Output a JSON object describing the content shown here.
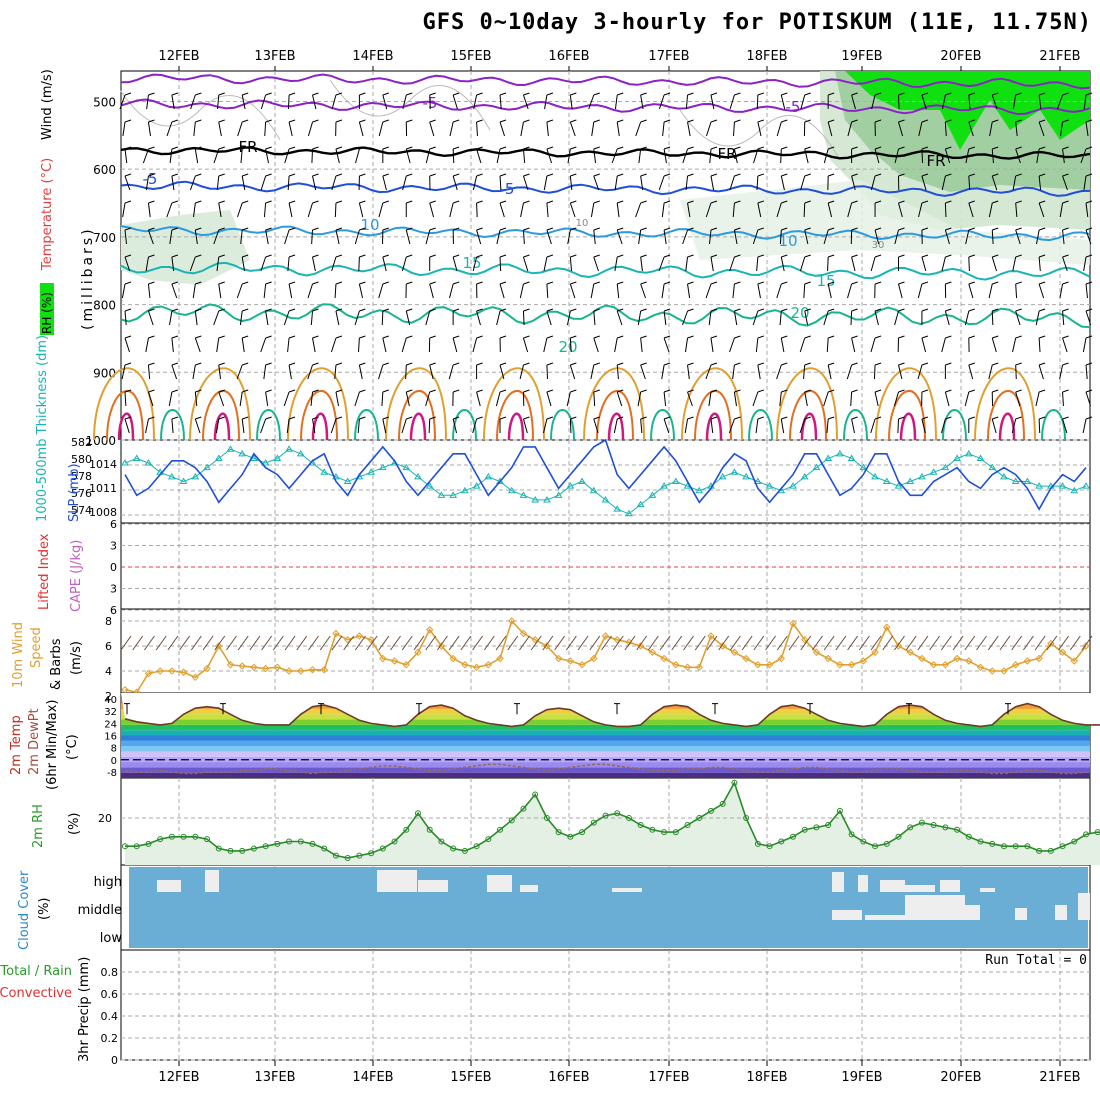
{
  "title": "GFS 0~10day 3-hourly for POTISKUM (11E, 11.75N)",
  "dates": [
    "12FEB",
    "13FEB",
    "14FEB",
    "15FEB",
    "16FEB",
    "17FEB",
    "18FEB",
    "19FEB",
    "20FEB",
    "21FEB"
  ],
  "colors": {
    "purple": "#8a22c8",
    "black": "#000000",
    "blue": "#1f4fd8",
    "lightblue": "#2a9be0",
    "teal": "#19b4b4",
    "green": "#18b490",
    "orange": "#e0a030",
    "darkorange": "#e07020",
    "magenta": "#d01880",
    "rhgreen": "#10e010",
    "cloud": "#6aaed6",
    "tempLine": "#6b3a2a"
  },
  "panels": {
    "upper": {
      "labels": {
        "rh": "RH (%)",
        "temp": "Temperature (°C)",
        "wind": "Wind (m/s)",
        "pressure": "(millibars)"
      },
      "yticks": [
        "500",
        "600",
        "700",
        "800",
        "900",
        "1000"
      ],
      "isotherm_labels": [
        "-5",
        "-5",
        "FR",
        "FR",
        "FR",
        "-5",
        "-5",
        "10",
        "10",
        "15",
        "15",
        "20",
        "20",
        "10",
        "30"
      ]
    },
    "thickness": {
      "label_left": "1000-500mb Thickness (dm)",
      "label_right": "SLP (mb)",
      "yticks_left": [
        "582",
        "580",
        "578",
        "576",
        "574"
      ],
      "yticks_right": [
        "1014",
        "1011",
        "1008"
      ]
    },
    "lifted": {
      "label1": "Lifted Index",
      "label2": "CAPE (J/kg)",
      "yticks": [
        "6",
        "3",
        "0",
        "3",
        "6"
      ]
    },
    "wind10": {
      "label1": "10m Wind",
      "label2": "Speed",
      "label3": "& Barbs",
      "unit": "(m/s)",
      "yticks": [
        "8",
        "6",
        "4",
        "2"
      ]
    },
    "temp2m": {
      "label1": "2m Temp",
      "label2": "2m DewPt",
      "label3": "(6hr Min/Max)",
      "unit": "(°C)",
      "yticks": [
        "40",
        "32",
        "24",
        "16",
        "8",
        "0",
        "-8"
      ]
    },
    "rh2m": {
      "label": "2m RH",
      "unit": "(%)",
      "yticks": [
        "20"
      ]
    },
    "cloud": {
      "label1": "Cloud Cover",
      "unit": "(%)",
      "levels": [
        "high",
        "middle",
        "low"
      ]
    },
    "precip": {
      "label1": "Total / Rain",
      "label2": "Convective",
      "label3": "3hr Precip (mm)",
      "yticks": [
        "0.8",
        "0.6",
        "0.4",
        "0.2",
        "0"
      ],
      "run_total": "Run Total = 0"
    }
  },
  "chart_data": [
    {
      "type": "line",
      "name": "SLP (mb)",
      "x_unit": "3-hourly steps",
      "ylim": [
        1005,
        1017
      ],
      "values": [
        1012,
        1009,
        1010,
        1012,
        1014,
        1014,
        1013,
        1011,
        1008,
        1010,
        1012,
        1015,
        1013,
        1012,
        1010,
        1012,
        1014,
        1015,
        1011,
        1009,
        1012,
        1014,
        1016,
        1014,
        1011,
        1009,
        1011,
        1013,
        1015,
        1015,
        1012,
        1009,
        1011,
        1013,
        1016,
        1016,
        1013,
        1010,
        1012,
        1014,
        1016,
        1017,
        1012,
        1010,
        1012,
        1014,
        1016,
        1014,
        1011,
        1008,
        1010,
        1013,
        1015,
        1014,
        1010,
        1008,
        1010,
        1012,
        1015,
        1015,
        1012,
        1009,
        1010,
        1012,
        1015,
        1015,
        1011,
        1009,
        1009,
        1011,
        1012,
        1013,
        1011,
        1010,
        1012,
        1013,
        1012,
        1010,
        1007,
        1010,
        1012,
        1011,
        1013
      ]
    },
    {
      "type": "line",
      "name": "1000-500mb Thickness (dm)",
      "ylim": [
        573,
        582
      ],
      "values": [
        579.5,
        580,
        579.5,
        578.5,
        578,
        577.5,
        578,
        579,
        580,
        581,
        580.5,
        580,
        579.5,
        580,
        581,
        580.5,
        579.5,
        578.5,
        578,
        577.5,
        578,
        578.5,
        579,
        579.5,
        579,
        578,
        577,
        576,
        576,
        576.5,
        577,
        578,
        577.5,
        576.5,
        576,
        575.5,
        575.5,
        576,
        577,
        577.5,
        576.5,
        575.5,
        574.5,
        574,
        575,
        576,
        577,
        577.5,
        577,
        576.5,
        577,
        578,
        578.5,
        578,
        577.5,
        577,
        576.5,
        577,
        578,
        579,
        580,
        580.5,
        580,
        579,
        578,
        577.5,
        577,
        577.5,
        578,
        578.5,
        579,
        580,
        580.5,
        580,
        579,
        578,
        577.5,
        577.5,
        577,
        577,
        577,
        576.5,
        577
      ]
    },
    {
      "type": "line",
      "name": "10m Wind Speed (m/s)",
      "ylim": [
        2,
        8
      ],
      "values": [
        2.5,
        2.3,
        3.8,
        4,
        4,
        3.9,
        3.5,
        4.2,
        6,
        4.5,
        4.4,
        4.3,
        4.2,
        4.3,
        4,
        4,
        4.1,
        4.1,
        7,
        6.5,
        6.8,
        6.5,
        5,
        4.8,
        4.5,
        5.5,
        7.3,
        6,
        5,
        4.5,
        4.3,
        4.5,
        5,
        8,
        7,
        6.5,
        6,
        5,
        4.8,
        4.5,
        5,
        6.8,
        6.5,
        6.3,
        6,
        5.5,
        5,
        4.5,
        4.3,
        4.3,
        6.8,
        6,
        5.5,
        5,
        4.5,
        4.5,
        5,
        7.8,
        6.5,
        5.5,
        5,
        4.5,
        4.5,
        4.8,
        5.5,
        7.5,
        6,
        5.5,
        5,
        4.5,
        4.5,
        5,
        4.8,
        4.3,
        4,
        4,
        4.5,
        4.8,
        5,
        6.2,
        5.5,
        4.8,
        6
      ]
    },
    {
      "type": "line",
      "name": "2m Temp (°C)",
      "ylim": [
        -12,
        44
      ],
      "values": [
        27,
        25,
        24,
        23,
        24,
        30,
        34,
        35,
        34,
        30,
        26,
        24,
        23,
        23,
        23,
        30,
        35,
        36,
        34,
        30,
        26,
        24,
        23,
        22,
        23,
        30,
        35,
        36,
        34,
        29,
        26,
        24,
        23,
        22,
        23,
        29,
        33,
        34,
        33,
        29,
        25,
        23,
        22,
        22,
        23,
        30,
        35,
        36,
        35,
        30,
        26,
        24,
        23,
        22,
        23,
        30,
        35,
        36,
        34,
        30,
        26,
        24,
        23,
        22,
        23,
        30,
        35,
        36,
        35,
        30,
        26,
        24,
        23,
        22,
        23,
        30,
        35,
        37,
        35,
        30,
        26,
        24,
        23,
        23,
        23,
        23,
        23
      ]
    },
    {
      "type": "line",
      "name": "2m DewPt (°C)",
      "ylim": [
        -12,
        44
      ],
      "values": [
        -7,
        -8,
        -8,
        -7,
        -8,
        -9,
        -9,
        -8,
        -8,
        -8,
        -7,
        -7,
        -6,
        -6,
        -7,
        -8,
        -9,
        -8,
        -8,
        -7,
        -6,
        -5,
        -4,
        -4,
        -5,
        -6,
        -7,
        -7,
        -6,
        -5,
        -4,
        -3,
        -3,
        -4,
        -5,
        -6,
        -7,
        -6,
        -5,
        -4,
        -3,
        -3,
        -4,
        -5,
        -6,
        -7,
        -7,
        -7,
        -6,
        -6,
        -5,
        -5,
        -6,
        -7,
        -8,
        -8,
        -7,
        -6,
        -5,
        -5,
        -6,
        -7,
        -8,
        -8,
        -7,
        -6,
        -6,
        -7,
        -8,
        -8,
        -8,
        -7,
        -7,
        -8,
        -9,
        -9,
        -8,
        -7,
        -7,
        -8,
        -9,
        -9,
        -8
      ]
    },
    {
      "type": "area",
      "name": "2m RH (%)",
      "ylim": [
        0,
        37
      ],
      "values": [
        8,
        8,
        9,
        11,
        12,
        12,
        12,
        11,
        7,
        6,
        6,
        7,
        8,
        9,
        10,
        10,
        9,
        7,
        4,
        3,
        4,
        5,
        7,
        10,
        15,
        22,
        15,
        10,
        7,
        6,
        8,
        11,
        15,
        19,
        24,
        30,
        20,
        14,
        12,
        14,
        18,
        21,
        22,
        20,
        17,
        15,
        14,
        14,
        17,
        20,
        23,
        26,
        35,
        20,
        9,
        8,
        10,
        12,
        15,
        16,
        17,
        23,
        13,
        10,
        8,
        9,
        12,
        16,
        18,
        17,
        16,
        15,
        12,
        10,
        9,
        8,
        8,
        8,
        6,
        6,
        8,
        10,
        13,
        14,
        13,
        14,
        16
      ]
    },
    {
      "type": "bar",
      "name": "3hr Precip (mm)",
      "ylim": [
        0,
        1
      ],
      "values": [
        0
      ],
      "run_total": 0
    }
  ]
}
